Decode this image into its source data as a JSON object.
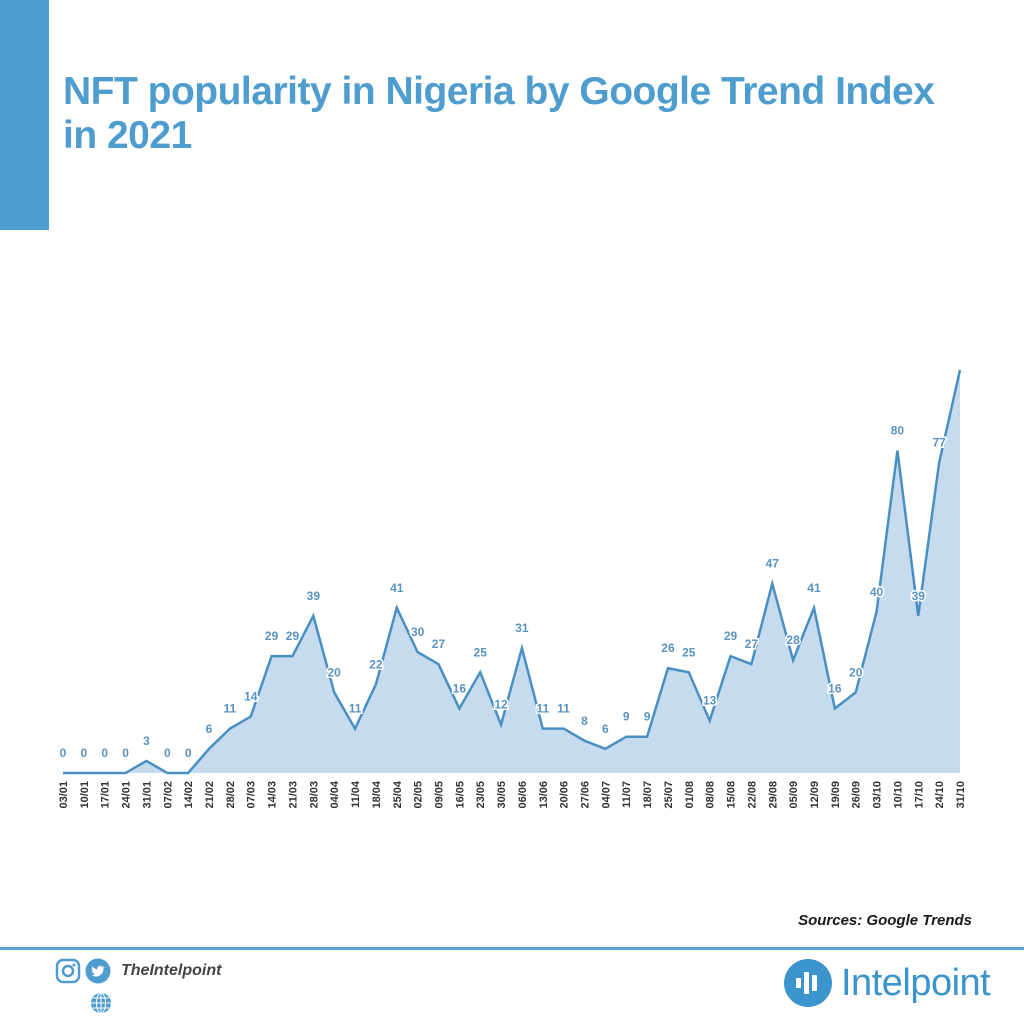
{
  "header": {
    "title": "NFT popularity in Nigeria by Google Trend Index in 2021",
    "accent_color": "#4f9ccf"
  },
  "chart_data": {
    "type": "area",
    "title": "NFT popularity in Nigeria by Google Trend Index in 2021",
    "xlabel": "",
    "ylabel": "",
    "ylim": [
      0,
      100
    ],
    "grid": false,
    "legend": "none",
    "line_color": "#4a8fc2",
    "fill_color": "#c6dcee",
    "label_color": "#5b93c0",
    "categories": [
      "03/01",
      "10/01",
      "17/01",
      "24/01",
      "31/01",
      "07/02",
      "14/02",
      "21/02",
      "28/02",
      "07/03",
      "14/03",
      "21/03",
      "28/03",
      "04/04",
      "11/04",
      "18/04",
      "25/04",
      "02/05",
      "09/05",
      "16/05",
      "23/05",
      "30/05",
      "06/06",
      "13/06",
      "20/06",
      "27/06",
      "04/07",
      "11/07",
      "18/07",
      "25/07",
      "01/08",
      "08/08",
      "15/08",
      "22/08",
      "29/08",
      "05/09",
      "12/09",
      "19/09",
      "26/09",
      "03/10",
      "10/10",
      "17/10",
      "24/10",
      "31/10"
    ],
    "values": [
      0,
      0,
      0,
      0,
      3,
      0,
      0,
      6,
      11,
      14,
      29,
      29,
      39,
      20,
      11,
      22,
      41,
      30,
      27,
      16,
      25,
      12,
      31,
      11,
      11,
      8,
      6,
      9,
      9,
      26,
      25,
      13,
      29,
      27,
      47,
      28,
      41,
      16,
      20,
      40,
      80,
      39,
      77,
      100
    ],
    "data_labels": [
      "0",
      "0",
      "0",
      "0",
      "3",
      "0",
      "0",
      "6",
      "11",
      "14",
      "29",
      "29",
      "39",
      "20",
      "11",
      "22",
      "41",
      "30",
      "27",
      "16",
      "25",
      "12",
      "31",
      "11",
      "11",
      "8",
      "6",
      "9",
      "9",
      "26",
      "25",
      "13",
      "29",
      "27",
      "47",
      "28",
      "41",
      "16",
      "20",
      "40",
      "80",
      "39",
      "77",
      ""
    ]
  },
  "footer": {
    "source": "Sources: Google Trends",
    "handle": "TheIntelpoint",
    "brand": "Intelpoint",
    "icons": [
      "instagram-icon",
      "twitter-icon",
      "globe-icon"
    ],
    "brand_color": "#3b95cc"
  }
}
